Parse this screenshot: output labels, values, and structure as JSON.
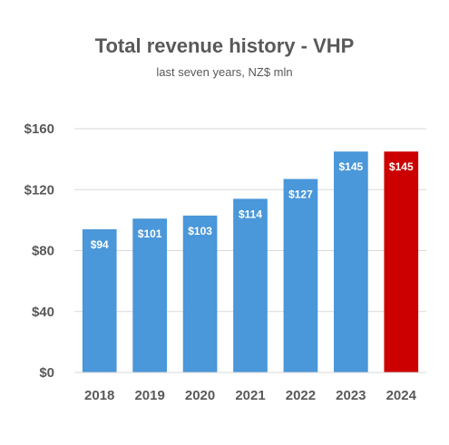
{
  "chart_data": {
    "type": "bar",
    "title": "Total revenue history - VHP",
    "subtitle": "last seven years, NZ$ mln",
    "categories": [
      "2018",
      "2019",
      "2020",
      "2021",
      "2022",
      "2023",
      "2024"
    ],
    "values": [
      94,
      101,
      103,
      114,
      127,
      145,
      145
    ],
    "data_labels": [
      "$94",
      "$101",
      "$103",
      "$114",
      "$127",
      "$145",
      "$145"
    ],
    "bar_colors": [
      "#4a97d9",
      "#4a97d9",
      "#4a97d9",
      "#4a97d9",
      "#4a97d9",
      "#4a97d9",
      "#cc0000"
    ],
    "y_ticks": [
      0,
      40,
      80,
      120,
      160
    ],
    "y_tick_labels": [
      "$0",
      "$40",
      "$80",
      "$120",
      "$160"
    ],
    "ylim": [
      0,
      160
    ],
    "grid": true,
    "legend": false,
    "xlabel": "",
    "ylabel": ""
  }
}
